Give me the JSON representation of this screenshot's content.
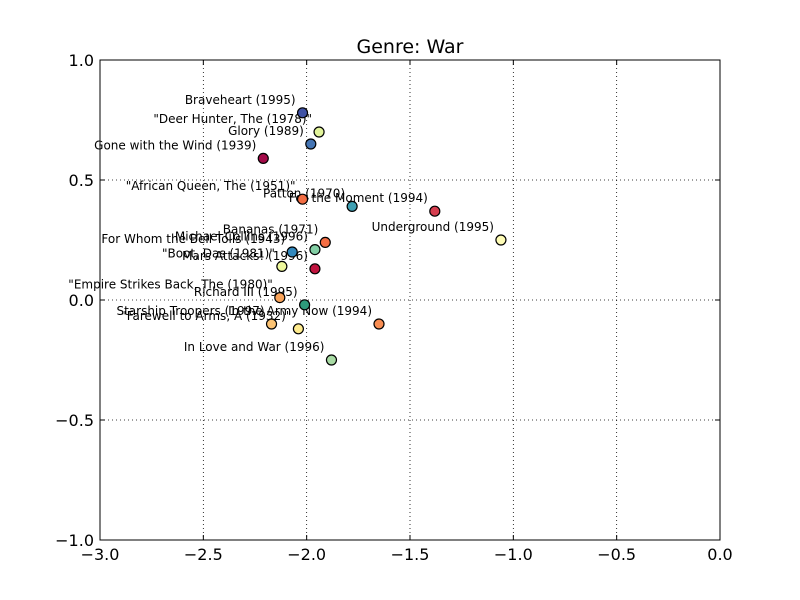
{
  "chart_data": {
    "type": "scatter",
    "title": "Genre: War",
    "xlabel": "",
    "ylabel": "",
    "xlim": [
      -3.0,
      0.0
    ],
    "ylim": [
      -1.0,
      1.0
    ],
    "x_ticks": [
      "−3.0",
      "−2.5",
      "−2.0",
      "−1.5",
      "−1.0",
      "−0.5",
      "0.0"
    ],
    "x_tick_values": [
      -3.0,
      -2.5,
      -2.0,
      -1.5,
      -1.0,
      -0.5,
      0.0
    ],
    "y_ticks": [
      "1.0",
      "0.5",
      "0.0",
      "−0.5",
      "−1.0"
    ],
    "y_tick_values": [
      1.0,
      0.5,
      0.0,
      -0.5,
      -1.0
    ],
    "grid": true,
    "points": [
      {
        "label": "Braveheart (1995)",
        "x": -2.02,
        "y": 0.78,
        "color": "#3f52a5"
      },
      {
        "label": "\"Deer Hunter, The (1978)\"",
        "x": -1.94,
        "y": 0.7,
        "color": "#e2f49b"
      },
      {
        "label": "Glory (1989)",
        "x": -1.98,
        "y": 0.65,
        "color": "#4575b4"
      },
      {
        "label": "Gone with the Wind (1939)",
        "x": -2.21,
        "y": 0.59,
        "color": "#a30a48"
      },
      {
        "label": "\"African Queen, The (1951)\"",
        "x": -2.02,
        "y": 0.42,
        "color": "#f26d43"
      },
      {
        "label": "Patton (1970)",
        "x": -1.78,
        "y": 0.39,
        "color": "#3fa0b3"
      },
      {
        "label": "For the Moment (1994)",
        "x": -1.38,
        "y": 0.37,
        "color": "#d53e4f"
      },
      {
        "label": "Underground (1995)",
        "x": -1.06,
        "y": 0.25,
        "color": "#fefcb6"
      },
      {
        "label": "Bananas (1971)",
        "x": -1.91,
        "y": 0.24,
        "color": "#f46d43"
      },
      {
        "label": "Michael Collins (1996)",
        "x": -1.96,
        "y": 0.21,
        "color": "#83cfa5"
      },
      {
        "label": "For Whom the Bell Tolls (1943)",
        "x": -2.07,
        "y": 0.2,
        "color": "#3288bd"
      },
      {
        "label": "\"Boot, Das (1981)\"",
        "x": -2.12,
        "y": 0.14,
        "color": "#eef89c"
      },
      {
        "label": "Mars Attacks! (1996)",
        "x": -1.96,
        "y": 0.13,
        "color": "#c0143f"
      },
      {
        "label": "\"Empire Strikes Back, The (1980)\"",
        "x": -2.13,
        "y": 0.01,
        "color": "#f9a359"
      },
      {
        "label": "Richard III (1995)",
        "x": -2.01,
        "y": -0.02,
        "color": "#2e9a7b"
      },
      {
        "label": "Starship Troopers (1997)",
        "x": -2.17,
        "y": -0.1,
        "color": "#fdc474"
      },
      {
        "label": "In the Army Now (1994)",
        "x": -1.65,
        "y": -0.1,
        "color": "#f88d52"
      },
      {
        "label": "\"Farewell to Arms, A (1932)\"",
        "x": -2.04,
        "y": -0.12,
        "color": "#feeb8e"
      },
      {
        "label": "In Love and War (1996)",
        "x": -1.88,
        "y": -0.25,
        "color": "#a8dba4"
      }
    ]
  }
}
